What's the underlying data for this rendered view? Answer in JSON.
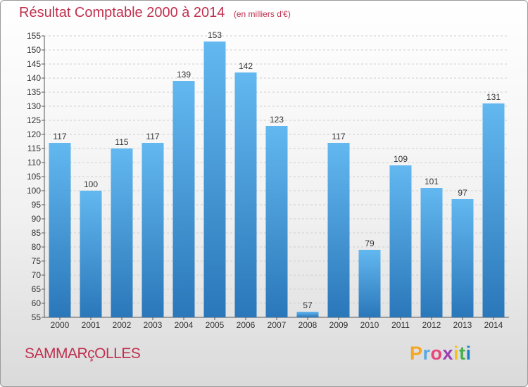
{
  "title": "Résultat Comptable 2000 à 2014",
  "subtitle": "(en milliers d'€)",
  "commune": "SAMMARçOLLES",
  "brand": {
    "letters": [
      "P",
      "r",
      "o",
      "x",
      "i",
      "t",
      "i"
    ],
    "colors": [
      "#f5a623",
      "#5aa9e6",
      "#e8457c",
      "#9c3fb5",
      "#f6c120",
      "#46b04a",
      "#1a82c6"
    ]
  },
  "colors": {
    "bar_top": "#63b8f0",
    "bar_bottom": "#2a77b9",
    "title": "#c0304e",
    "grid": "#cfcfcf"
  },
  "chart_data": {
    "type": "bar",
    "title": "Résultat Comptable 2000 à 2014",
    "xlabel": "",
    "ylabel": "",
    "ylim": [
      55,
      155
    ],
    "yticks": [
      55,
      60,
      65,
      70,
      75,
      80,
      85,
      90,
      95,
      100,
      105,
      110,
      115,
      120,
      125,
      130,
      135,
      140,
      145,
      150,
      155
    ],
    "categories": [
      "2000",
      "2001",
      "2002",
      "2003",
      "2004",
      "2005",
      "2006",
      "2007",
      "2008",
      "2009",
      "2010",
      "2011",
      "2012",
      "2013",
      "2014"
    ],
    "values": [
      117,
      100,
      115,
      117,
      139,
      153,
      142,
      123,
      57,
      117,
      79,
      109,
      101,
      97,
      131
    ],
    "grid": true
  }
}
